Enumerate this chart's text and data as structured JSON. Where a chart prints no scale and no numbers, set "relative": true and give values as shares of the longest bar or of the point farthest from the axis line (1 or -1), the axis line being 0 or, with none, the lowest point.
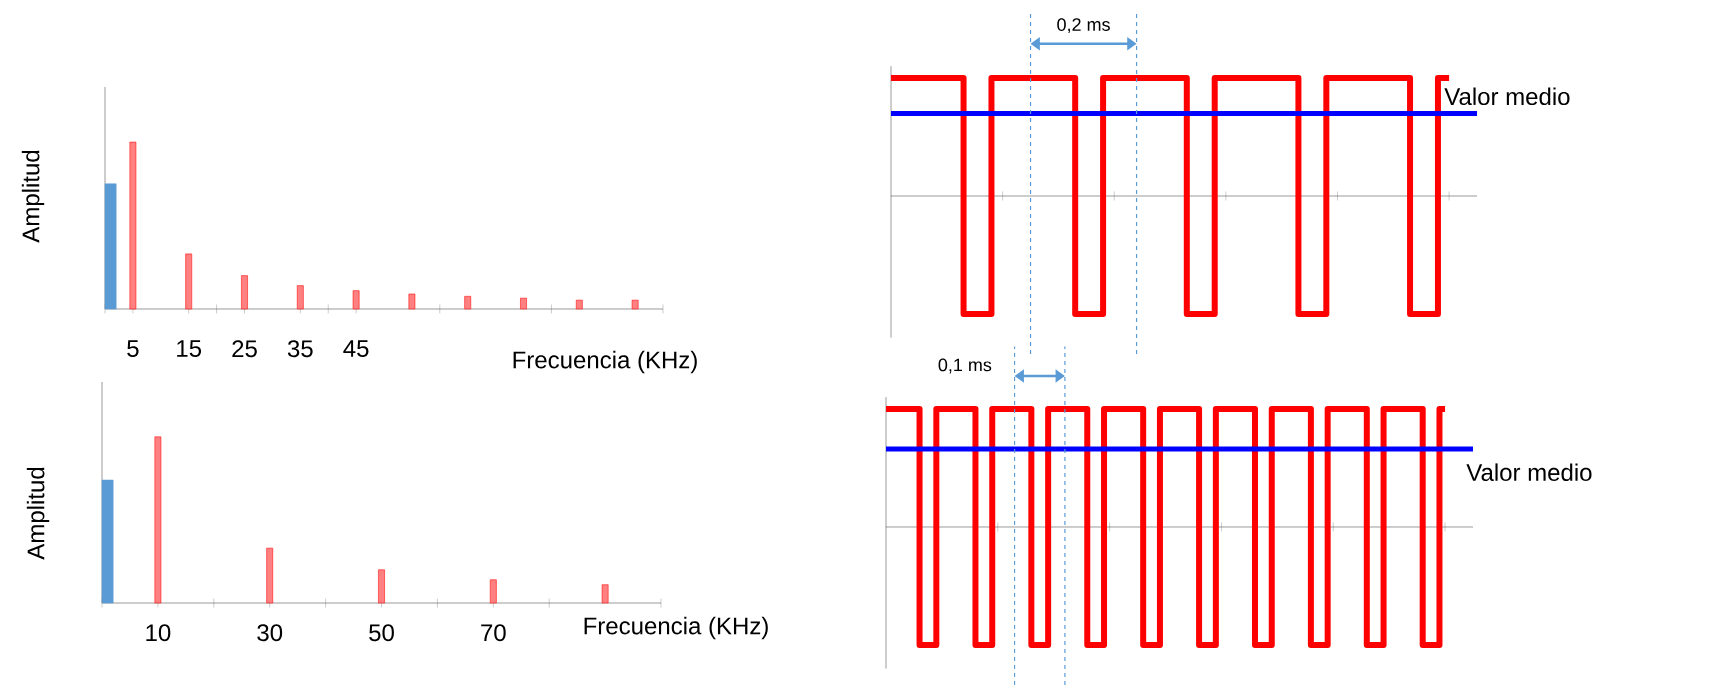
{
  "chart_data": [
    {
      "type": "bar",
      "relative": true,
      "xlabel": "Frecuencia (KHz)",
      "ylabel": "Amplitud",
      "xlim": [
        0,
        100
      ],
      "tick_labels": "x",
      "xticks": [
        {
          "value": 0,
          "label": null
        },
        5,
        15,
        {
          "value": 20,
          "label": null
        },
        25,
        35,
        {
          "value": 40,
          "label": null
        },
        45,
        {
          "value": 60,
          "label": null
        },
        {
          "value": 80,
          "label": null
        },
        {
          "value": 100,
          "label": null
        }
      ],
      "series": [
        {
          "color": "#5b9bd5",
          "x": [
            0
          ],
          "values": [
            0.75
          ]
        },
        {
          "color": "#ff0000",
          "x": [
            5,
            15,
            25,
            35,
            45,
            55,
            65,
            75,
            85,
            95
          ],
          "values": [
            1,
            0.33,
            0.2,
            0.14,
            0.11,
            0.09,
            0.076,
            0.065,
            0.053,
            0.053
          ]
        }
      ]
    },
    {
      "type": "bar",
      "relative": true,
      "xlabel": "Frecuencia (KHz)",
      "ylabel": "Amplitud",
      "xlim": [
        0,
        100
      ],
      "tick_labels": "x",
      "xticks": [
        {
          "value": 0,
          "label": null
        },
        10,
        {
          "value": 20,
          "label": null
        },
        30,
        {
          "value": 40,
          "label": null
        },
        50,
        {
          "value": 60,
          "label": null
        },
        70,
        {
          "value": 80,
          "label": null
        },
        {
          "value": 100,
          "label": null
        }
      ],
      "series": [
        {
          "color": "#5b9bd5",
          "x": [
            0
          ],
          "values": [
            0.74
          ]
        },
        {
          "color": "#ff0000",
          "x": [
            10,
            30,
            50,
            70,
            90
          ],
          "values": [
            1,
            0.33,
            0.2,
            0.14,
            0.11
          ]
        }
      ]
    },
    {
      "type": "step",
      "relative": true,
      "tick_labels": false,
      "categories": [
        null,
        null,
        null,
        null,
        null,
        null,
        null,
        null,
        null,
        null,
        null,
        null,
        null,
        null,
        null,
        null,
        null,
        null,
        null,
        null,
        null,
        null,
        null,
        null,
        null,
        null,
        null,
        null,
        null,
        null,
        null,
        null,
        null,
        null,
        null,
        null,
        null,
        null,
        null,
        null,
        null,
        null,
        null,
        null,
        null,
        null,
        null,
        null,
        null,
        null,
        null,
        null,
        null,
        null,
        null,
        null,
        null,
        null,
        null,
        null,
        null,
        null,
        null,
        null,
        null,
        null,
        null,
        null,
        null,
        null,
        null,
        null,
        null,
        null,
        null,
        null,
        null,
        null,
        null,
        null,
        null,
        null,
        null,
        null,
        null,
        null,
        null,
        null,
        null,
        null,
        null,
        null,
        null,
        null,
        null,
        null,
        null,
        null,
        null,
        null,
        null
      ],
      "series": [
        {
          "color": "#ff0000",
          "values": [
            1,
            1,
            1,
            1,
            1,
            1,
            1,
            1,
            1,
            1,
            1,
            1,
            1,
            -1,
            -1,
            -1,
            -1,
            -1,
            1,
            1,
            1,
            1,
            1,
            1,
            1,
            1,
            1,
            1,
            1,
            1,
            1,
            1,
            1,
            -1,
            -1,
            -1,
            -1,
            -1,
            1,
            1,
            1,
            1,
            1,
            1,
            1,
            1,
            1,
            1,
            1,
            1,
            1,
            1,
            1,
            -1,
            -1,
            -1,
            -1,
            -1,
            1,
            1,
            1,
            1,
            1,
            1,
            1,
            1,
            1,
            1,
            1,
            1,
            1,
            1,
            1,
            -1,
            -1,
            -1,
            -1,
            -1,
            1,
            1,
            1,
            1,
            1,
            1,
            1,
            1,
            1,
            1,
            1,
            1,
            1,
            1,
            1,
            -1,
            -1,
            -1,
            -1,
            -1,
            1,
            1,
            1
          ]
        }
      ],
      "ref_lines": [
        {
          "axis": "y",
          "value": 0.7,
          "label": "Valor medio",
          "color": "#0000ff"
        }
      ],
      "annotations": [
        "0,2 ms"
      ]
    },
    {
      "type": "step",
      "relative": true,
      "tick_labels": false,
      "categories": [
        null,
        null,
        null,
        null,
        null,
        null,
        null,
        null,
        null,
        null,
        null,
        null,
        null,
        null,
        null,
        null,
        null,
        null,
        null,
        null,
        null,
        null,
        null,
        null,
        null,
        null,
        null,
        null,
        null,
        null,
        null,
        null,
        null,
        null,
        null,
        null,
        null,
        null,
        null,
        null,
        null,
        null,
        null,
        null,
        null,
        null,
        null,
        null,
        null,
        null,
        null,
        null,
        null,
        null,
        null,
        null,
        null,
        null,
        null,
        null,
        null,
        null,
        null,
        null,
        null,
        null,
        null,
        null,
        null,
        null,
        null,
        null,
        null,
        null,
        null,
        null,
        null,
        null,
        null,
        null,
        null,
        null,
        null,
        null,
        null,
        null,
        null,
        null,
        null,
        null,
        null,
        null,
        null,
        null,
        null,
        null,
        null,
        null,
        null,
        null,
        null
      ],
      "series": [
        {
          "color": "#ff0000",
          "values": [
            1,
            1,
            1,
            1,
            1,
            1,
            -1,
            -1,
            -1,
            1,
            1,
            1,
            1,
            1,
            1,
            1,
            -1,
            -1,
            -1,
            1,
            1,
            1,
            1,
            1,
            1,
            1,
            -1,
            -1,
            -1,
            1,
            1,
            1,
            1,
            1,
            1,
            1,
            -1,
            -1,
            -1,
            1,
            1,
            1,
            1,
            1,
            1,
            1,
            -1,
            -1,
            -1,
            1,
            1,
            1,
            1,
            1,
            1,
            1,
            -1,
            -1,
            -1,
            1,
            1,
            1,
            1,
            1,
            1,
            1,
            -1,
            -1,
            -1,
            1,
            1,
            1,
            1,
            1,
            1,
            1,
            -1,
            -1,
            -1,
            1,
            1,
            1,
            1,
            1,
            1,
            1,
            -1,
            -1,
            -1,
            1,
            1,
            1,
            1,
            1,
            1,
            1,
            -1,
            -1,
            -1,
            1,
            1
          ]
        }
      ],
      "ref_lines": [
        {
          "axis": "y",
          "value": 0.66,
          "label": "Valor medio",
          "color": "#0000ff"
        }
      ],
      "annotations": [
        "0,1 ms"
      ]
    }
  ]
}
